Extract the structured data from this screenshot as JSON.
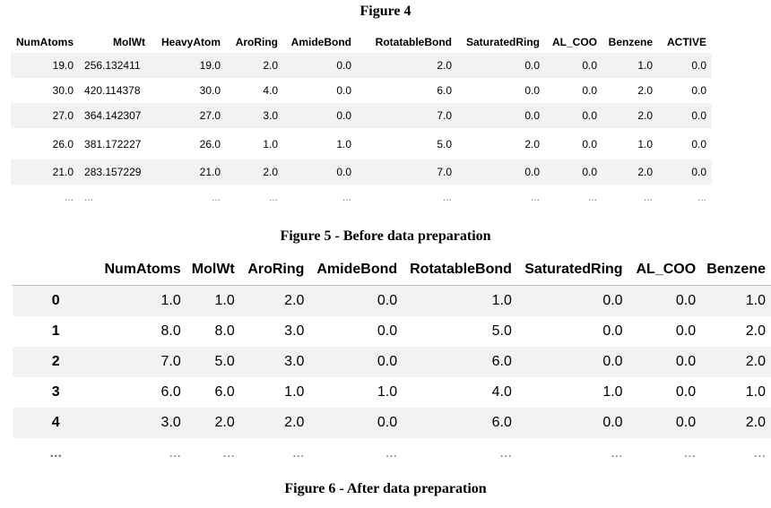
{
  "captions": {
    "figure4": "Figure 4",
    "figure5": "Figure 5 - Before data preparation",
    "figure6": "Figure 6 - After data preparation"
  },
  "table_before": {
    "columns": [
      "NumAtoms",
      "MolWt",
      "HeavyAtom",
      "AroRing",
      "AmideBond",
      "RotatableBond",
      "SaturatedRing",
      "AL_COO",
      "Benzene",
      "ACTIVE"
    ],
    "rows": [
      [
        "19.0",
        "256.132411",
        "19.0",
        "2.0",
        "0.0",
        "2.0",
        "0.0",
        "0.0",
        "1.0",
        "0.0"
      ],
      [
        "30.0",
        "420.114378",
        "30.0",
        "4.0",
        "0.0",
        "6.0",
        "0.0",
        "0.0",
        "2.0",
        "0.0"
      ],
      [
        "27.0",
        "364.142307",
        "27.0",
        "3.0",
        "0.0",
        "7.0",
        "0.0",
        "0.0",
        "2.0",
        "0.0"
      ],
      [
        "26.0",
        "381.172227",
        "26.0",
        "1.0",
        "1.0",
        "5.0",
        "2.0",
        "0.0",
        "1.0",
        "0.0"
      ],
      [
        "21.0",
        "283.157229",
        "21.0",
        "2.0",
        "0.0",
        "7.0",
        "0.0",
        "0.0",
        "2.0",
        "0.0"
      ],
      [
        "...",
        "...",
        "...",
        "...",
        "...",
        "...",
        "...",
        "...",
        "...",
        "..."
      ]
    ]
  },
  "table_after": {
    "columns": [
      "NumAtoms",
      "MolWt",
      "AroRing",
      "AmideBond",
      "RotatableBond",
      "SaturatedRing",
      "AL_COO",
      "Benzene"
    ],
    "index": [
      "0",
      "1",
      "2",
      "3",
      "4",
      "..."
    ],
    "rows": [
      [
        "1.0",
        "1.0",
        "2.0",
        "0.0",
        "1.0",
        "0.0",
        "0.0",
        "1.0"
      ],
      [
        "8.0",
        "8.0",
        "3.0",
        "0.0",
        "5.0",
        "0.0",
        "0.0",
        "2.0"
      ],
      [
        "7.0",
        "5.0",
        "3.0",
        "0.0",
        "6.0",
        "0.0",
        "0.0",
        "2.0"
      ],
      [
        "6.0",
        "6.0",
        "1.0",
        "1.0",
        "4.0",
        "1.0",
        "0.0",
        "1.0"
      ],
      [
        "3.0",
        "2.0",
        "2.0",
        "0.0",
        "6.0",
        "0.0",
        "0.0",
        "2.0"
      ],
      [
        "...",
        "...",
        "...",
        "...",
        "...",
        "...",
        "...",
        "..."
      ]
    ]
  }
}
